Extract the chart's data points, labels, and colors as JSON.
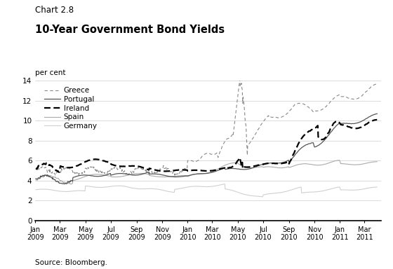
{
  "title_line1": "Chart 2.8",
  "title_line2": "10-Year Government Bond Yields",
  "ylabel": "per cent",
  "source": "Source: Bloomberg.",
  "ylim": [
    0,
    14
  ],
  "yticks": [
    0,
    2,
    4,
    6,
    8,
    10,
    12,
    14
  ],
  "background_color": "#ffffff",
  "grid_color": "#cccccc",
  "greece_color": "#888888",
  "portugal_color": "#555555",
  "ireland_color": "#000000",
  "spain_color": "#aaaaaa",
  "germany_color": "#d0d0d0"
}
